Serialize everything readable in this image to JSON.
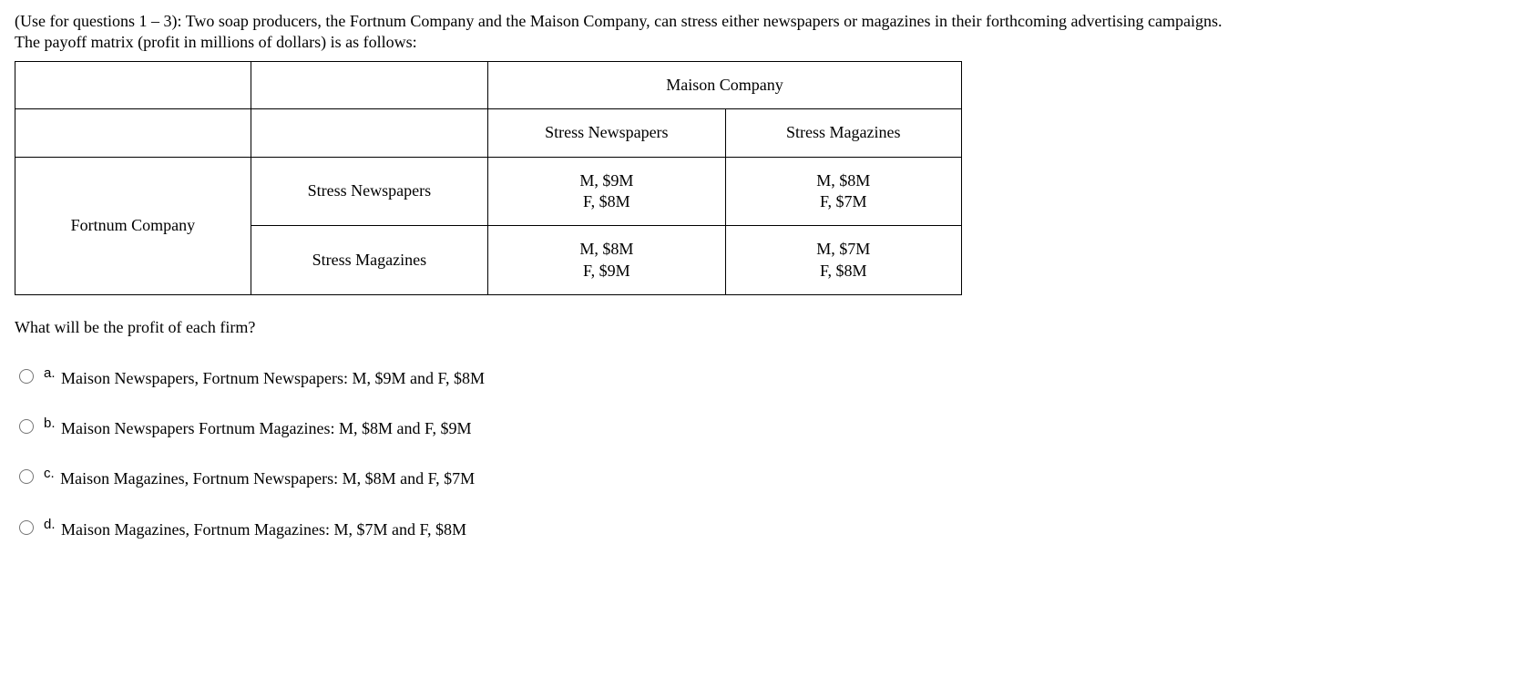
{
  "intro": {
    "line1": "(Use for questions 1 – 3): Two soap producers, the Fortnum Company and the Maison Company, can stress either newspapers or magazines in their forthcoming advertising campaigns.",
    "line2": "The payoff matrix (profit in millions of dollars) is as follows:"
  },
  "table": {
    "top_empty1": "",
    "top_empty2": "",
    "colspan_header": "Maison Company",
    "col_headers": {
      "c1": "Stress Newspapers",
      "c2": "Stress Magazines"
    },
    "row_label_main": "Fortnum Company",
    "row_headers": {
      "r1": "Stress Newspapers",
      "r2": "Stress Magazines"
    },
    "cells": {
      "r1c1_top": "M, $9M",
      "r1c1_bot": "F, $8M",
      "r1c2_top": "M, $8M",
      "r1c2_bot": "F, $7M",
      "r2c1_top": "M, $8M",
      "r2c1_bot": "F, $9M",
      "r2c2_top": "M, $7M",
      "r2c2_bot": "F, $8M"
    }
  },
  "question": "What will be the profit of each firm?",
  "options": {
    "a": {
      "letter": "a.",
      "text": "Maison Newspapers, Fortnum Newspapers:  M, $9M and F, $8M"
    },
    "b": {
      "letter": "b.",
      "text": "Maison Newspapers Fortnum Magazines:   M, $8M and F, $9M"
    },
    "c": {
      "letter": "c.",
      "text": "Maison Magazines, Fortnum Newspapers:  M, $8M and F, $7M"
    },
    "d": {
      "letter": "d.",
      "text": "Maison Magazines, Fortnum Magazines:    M, $7M and F, $8M"
    }
  }
}
